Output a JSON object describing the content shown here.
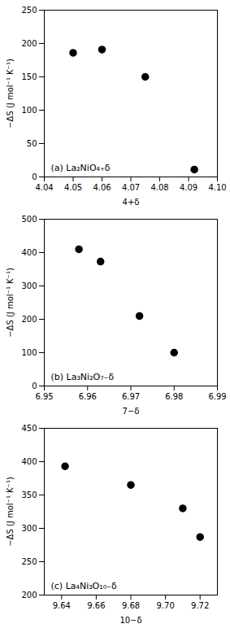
{
  "chart_data": [
    {
      "type": "scatter",
      "x": [
        4.05,
        4.06,
        4.075,
        4.092
      ],
      "values": [
        186,
        191,
        150,
        11
      ],
      "xlim": [
        4.04,
        4.1
      ],
      "ylim": [
        0,
        250
      ],
      "xticks": [
        4.04,
        4.05,
        4.06,
        4.07,
        4.08,
        4.09,
        {
          "value": 4.1,
          "label": "4.10"
        }
      ],
      "yticks": [
        0,
        50,
        100,
        150,
        200,
        250
      ],
      "xlabel": "4+δ",
      "ylabel": "−ΔS (J mol⁻¹ K⁻¹)",
      "annotations": [
        "(a) La₂NiO₄₊δ"
      ],
      "color": "black",
      "marker": "circle",
      "grid": false
    },
    {
      "type": "scatter",
      "x": [
        6.958,
        6.963,
        6.972,
        6.98
      ],
      "values": [
        410,
        373,
        210,
        100
      ],
      "xlim": [
        6.95,
        6.99
      ],
      "ylim": [
        0,
        500
      ],
      "xticks": [
        6.95,
        6.96,
        6.97,
        6.98,
        6.99
      ],
      "yticks": [
        0,
        100,
        200,
        300,
        400,
        500
      ],
      "xlabel": "7−δ",
      "ylabel": "−ΔS (J mol⁻¹ K⁻¹)",
      "annotations": [
        "(b) La₃Ni₂O₇₋δ"
      ],
      "color": "black",
      "marker": "circle",
      "grid": false
    },
    {
      "type": "scatter",
      "x": [
        9.642,
        9.68,
        9.71,
        9.72
      ],
      "values": [
        393,
        365,
        330,
        287
      ],
      "xlim": [
        9.63,
        9.73
      ],
      "ylim": [
        200,
        450
      ],
      "xticks": [
        9.64,
        9.66,
        9.68,
        {
          "value": 9.7,
          "label": "9.70"
        },
        9.72
      ],
      "yticks": [
        200,
        250,
        300,
        350,
        400,
        450
      ],
      "xlabel": "10−δ",
      "ylabel": "−ΔS (J mol⁻¹ K⁻¹)",
      "annotations": [
        "(c) La₄Ni₃O₁₀₋δ"
      ],
      "color": "black",
      "marker": "circle",
      "grid": false
    }
  ]
}
